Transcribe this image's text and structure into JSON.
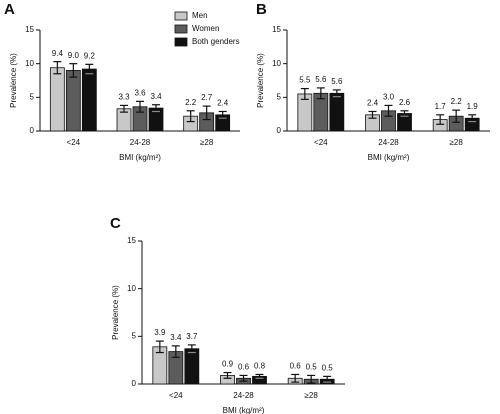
{
  "chart_data": [
    {
      "type": "bar",
      "title": "A",
      "ylabel": "Prevalence (%)",
      "xlabel": "BMI (kg/m²)",
      "categories": [
        "<24",
        "24-28",
        "≥28"
      ],
      "series": [
        {
          "name": "Men",
          "color": "#c8c8c8",
          "values": [
            9.4,
            3.3,
            2.2
          ],
          "value_labels": [
            "9.4",
            "3.3",
            "2.2"
          ],
          "errors": [
            0.9,
            0.5,
            0.8
          ]
        },
        {
          "name": "Women",
          "color": "#5c5c5c",
          "values": [
            9.0,
            3.6,
            2.7
          ],
          "value_labels": [
            "9.0",
            "3.6",
            "2.7"
          ],
          "errors": [
            1.0,
            0.8,
            1.0
          ]
        },
        {
          "name": "Both genders",
          "color": "#111111",
          "values": [
            9.2,
            3.4,
            2.4
          ],
          "value_labels": [
            "9.2",
            "3.4",
            "2.4"
          ],
          "errors": [
            0.7,
            0.5,
            0.5
          ]
        }
      ],
      "ylim": [
        0,
        15
      ],
      "yticks": [
        0,
        5,
        10,
        15
      ],
      "legend": "upper right"
    },
    {
      "type": "bar",
      "title": "B",
      "ylabel": "Prevalence (%)",
      "xlabel": "BMI (kg/m²)",
      "categories": [
        "<24",
        "24-28",
        "≥28"
      ],
      "series": [
        {
          "name": "Men",
          "color": "#c8c8c8",
          "values": [
            5.5,
            2.4,
            1.7
          ],
          "value_labels": [
            "5.5",
            "2.4",
            "1.7"
          ],
          "errors": [
            0.8,
            0.5,
            0.7
          ]
        },
        {
          "name": "Women",
          "color": "#5c5c5c",
          "values": [
            5.6,
            3.0,
            2.2
          ],
          "value_labels": [
            "5.6",
            "3.0",
            "2.2"
          ],
          "errors": [
            0.8,
            0.8,
            0.9
          ]
        },
        {
          "name": "Both genders",
          "color": "#111111",
          "values": [
            5.6,
            2.6,
            1.9
          ],
          "value_labels": [
            "5.6",
            "2.6",
            "1.9"
          ],
          "errors": [
            0.5,
            0.4,
            0.5
          ]
        }
      ],
      "ylim": [
        0,
        15
      ],
      "yticks": [
        0,
        5,
        10,
        15
      ]
    },
    {
      "type": "bar",
      "title": "C",
      "ylabel": "Prevalence (%)",
      "xlabel": "BMI (kg/m²)",
      "categories": [
        "<24",
        "24-28",
        "≥28"
      ],
      "series": [
        {
          "name": "Men",
          "color": "#c8c8c8",
          "values": [
            3.9,
            0.9,
            0.6
          ],
          "value_labels": [
            "3.9",
            "0.9",
            "0.6"
          ],
          "errors": [
            0.6,
            0.3,
            0.4
          ]
        },
        {
          "name": "Women",
          "color": "#5c5c5c",
          "values": [
            3.4,
            0.6,
            0.5
          ],
          "value_labels": [
            "3.4",
            "0.6",
            "0.5"
          ],
          "errors": [
            0.6,
            0.3,
            0.4
          ]
        },
        {
          "name": "Both genders",
          "color": "#111111",
          "values": [
            3.7,
            0.8,
            0.5
          ],
          "value_labels": [
            "3.7",
            "0.8",
            "0.5"
          ],
          "errors": [
            0.4,
            0.2,
            0.3
          ]
        }
      ],
      "ylim": [
        0,
        15
      ],
      "yticks": [
        0,
        5,
        10,
        15
      ]
    }
  ]
}
